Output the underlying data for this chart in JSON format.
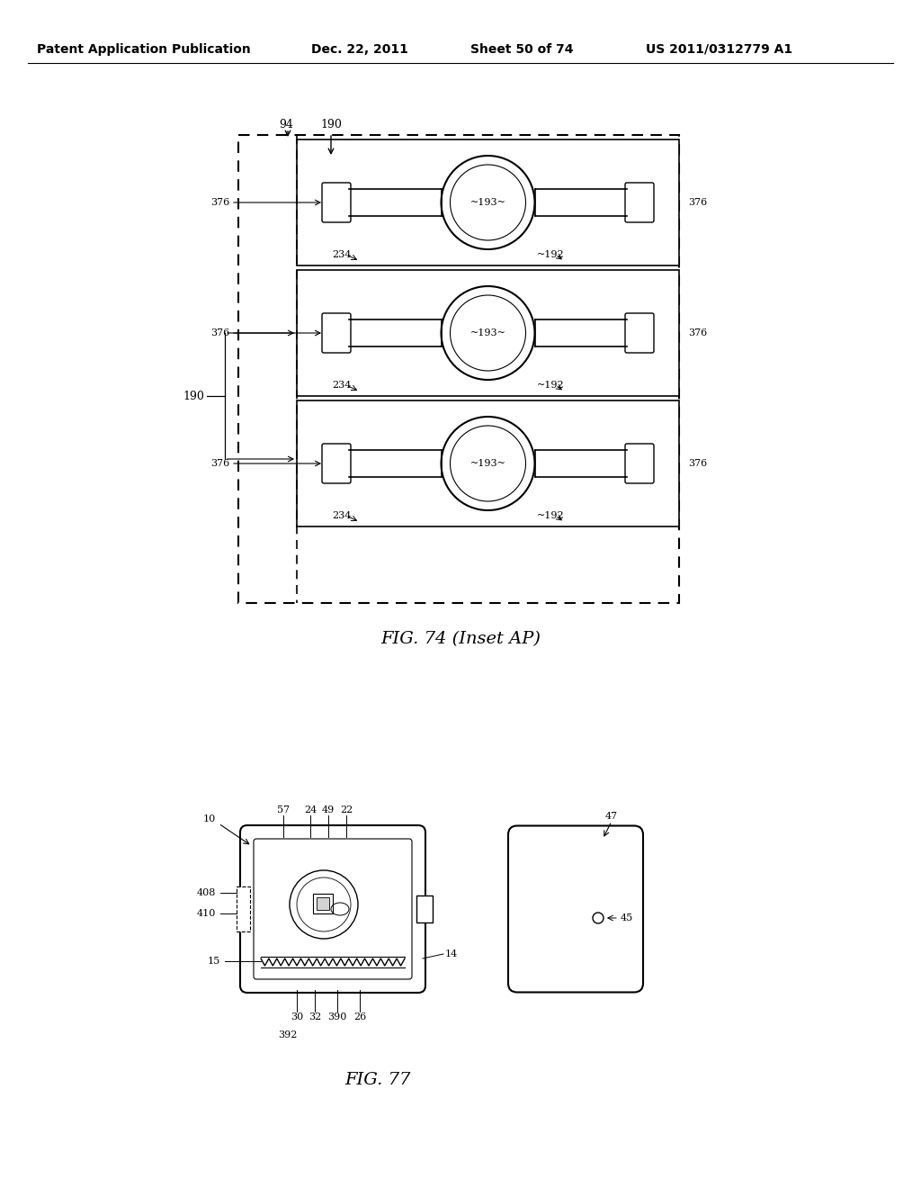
{
  "bg_color": "#ffffff",
  "header_text": "Patent Application Publication",
  "header_date": "Dec. 22, 2011",
  "header_sheet": "Sheet 50 of 74",
  "header_patent": "US 2011/0312779 A1",
  "fig74_caption": "FIG. 74 (Inset AP)",
  "fig77_caption": "FIG. 77"
}
